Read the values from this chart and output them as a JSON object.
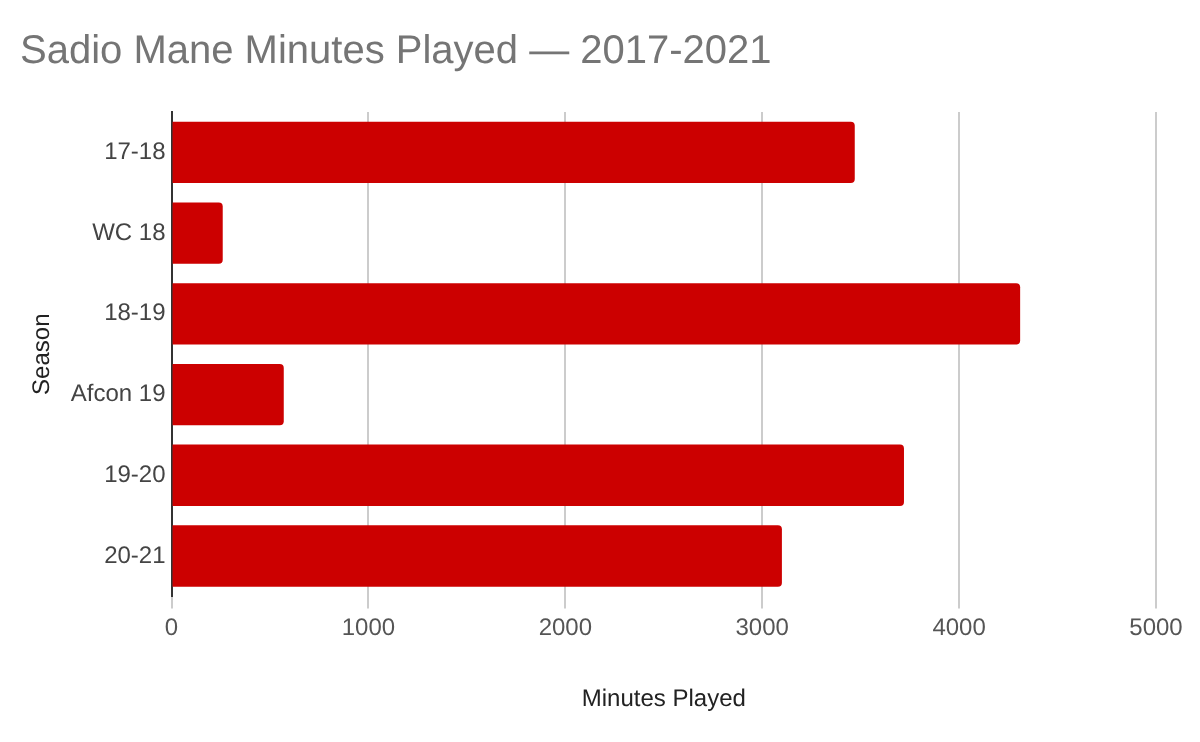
{
  "chart_data": {
    "type": "bar",
    "orientation": "horizontal",
    "title": "Sadio Mane Minutes Played — 2017-2021",
    "xlabel": "Minutes Played",
    "ylabel": "Season",
    "categories": [
      "17-18",
      "WC 18",
      "18-19",
      "Afcon 19",
      "19-20",
      "20-21"
    ],
    "values": [
      3470,
      260,
      4310,
      570,
      3720,
      3100
    ],
    "color": "#cc0000",
    "xlim": [
      0,
      5000
    ],
    "xticks": [
      0,
      1000,
      2000,
      3000,
      4000,
      5000
    ],
    "grid": "x",
    "legend": false
  }
}
